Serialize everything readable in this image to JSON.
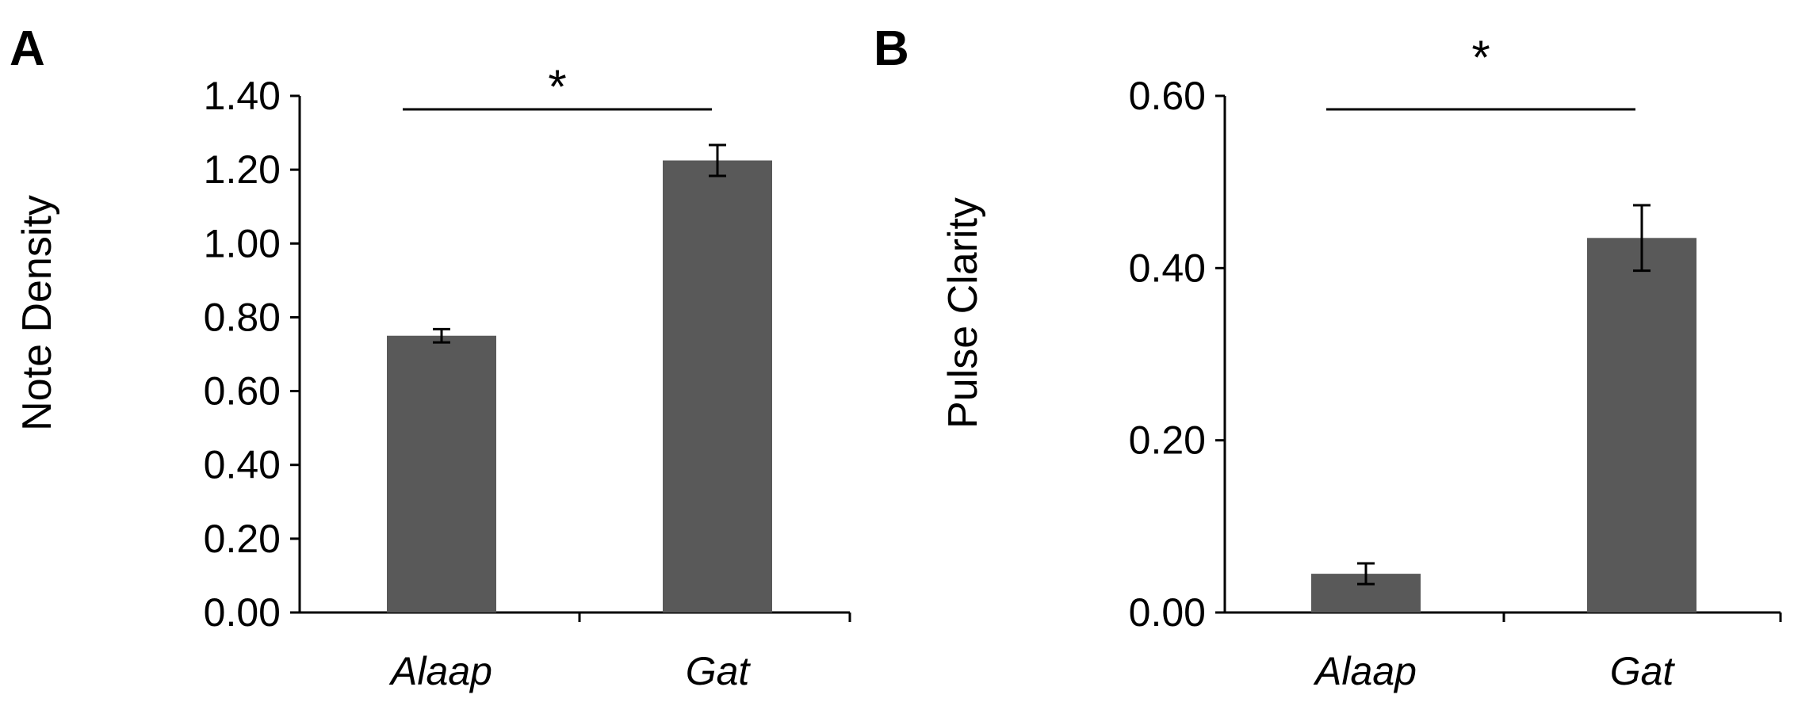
{
  "chart_data": [
    {
      "panel": "A",
      "type": "bar",
      "categories": [
        "Alaap",
        "Gat"
      ],
      "values": [
        0.75,
        1.225
      ],
      "errors": [
        0.018,
        0.042
      ],
      "ylabel": "Note Density",
      "ylim": [
        0,
        1.4
      ],
      "yticks": [
        "0.00",
        "0.20",
        "0.40",
        "0.60",
        "0.80",
        "1.00",
        "1.20",
        "1.40"
      ],
      "bar_color": "#595959",
      "grid": false,
      "significance": {
        "label": "*",
        "between": [
          "Alaap",
          "Gat"
        ]
      }
    },
    {
      "panel": "B",
      "type": "bar",
      "categories": [
        "Alaap",
        "Gat"
      ],
      "values": [
        0.045,
        0.435
      ],
      "errors": [
        0.012,
        0.038
      ],
      "ylabel": "Pulse Clarity",
      "ylim": [
        0,
        0.6
      ],
      "yticks": [
        "0.00",
        "0.20",
        "0.40",
        "0.60"
      ],
      "bar_color": "#595959",
      "grid": false,
      "significance": {
        "label": "*",
        "between": [
          "Alaap",
          "Gat"
        ]
      }
    }
  ]
}
